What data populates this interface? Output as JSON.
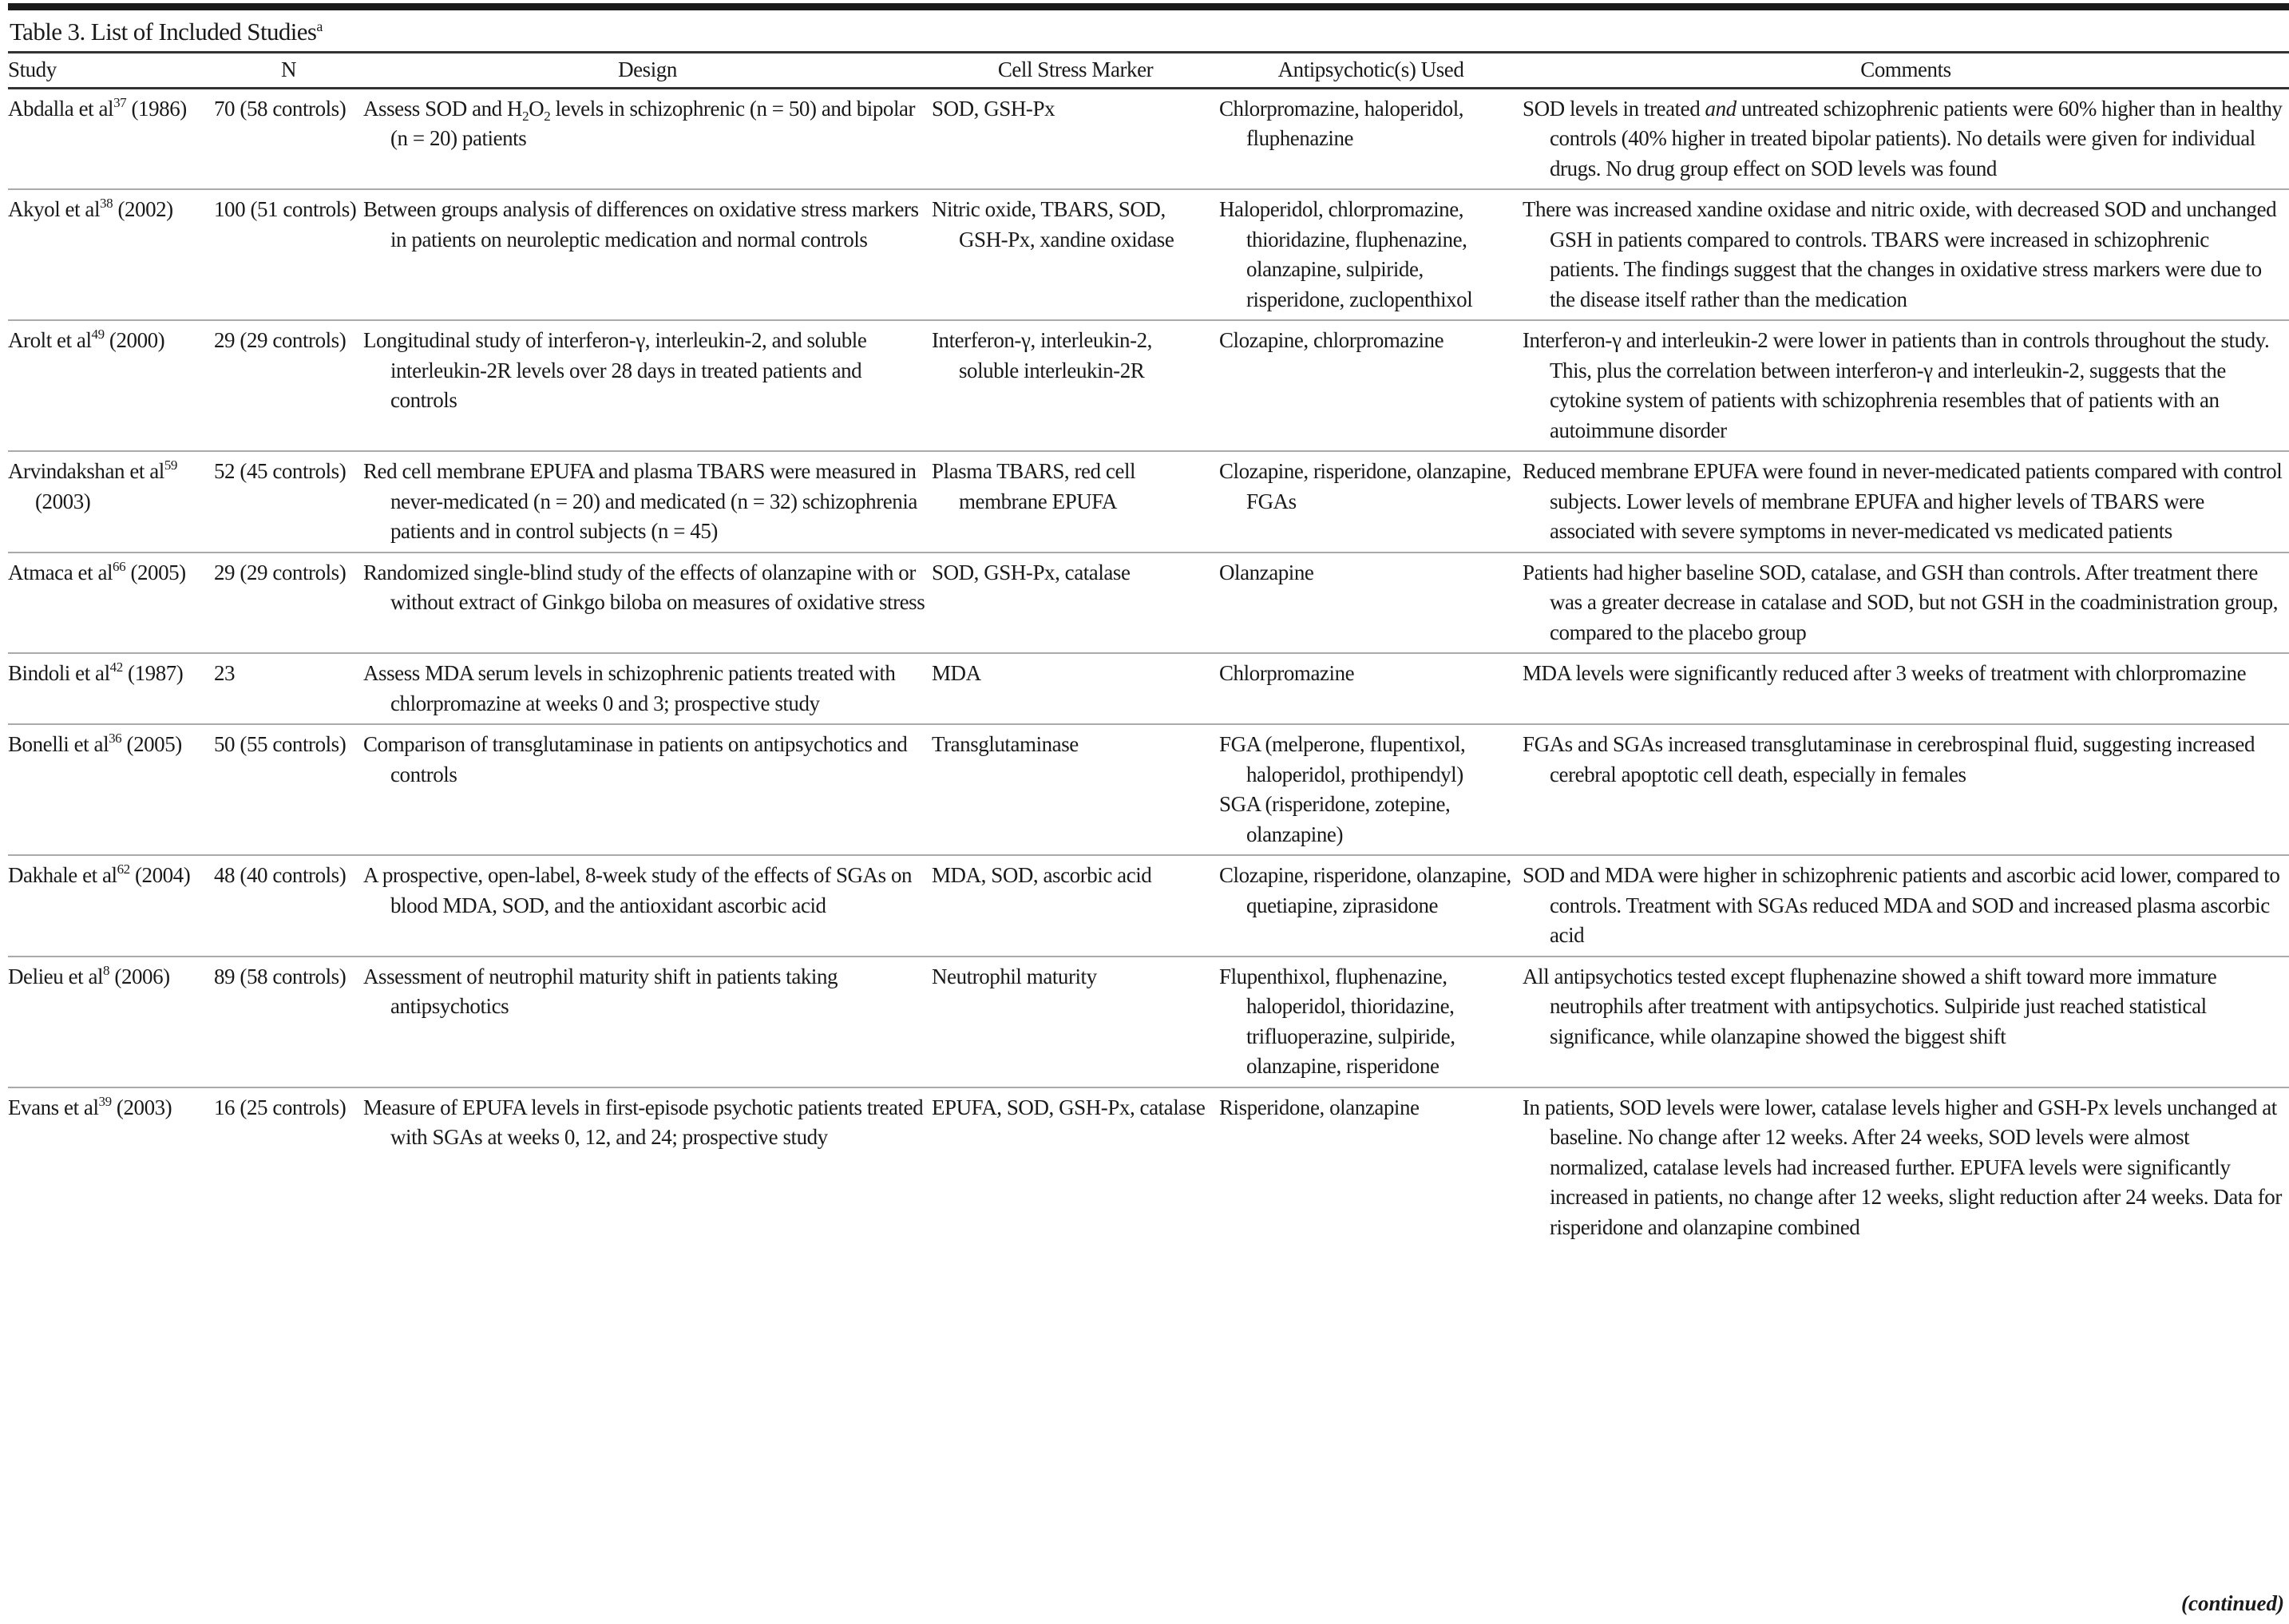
{
  "table": {
    "title": "Table 3. List of Included Studies",
    "title_sup": "a",
    "headers": [
      "Study",
      "N",
      "Design",
      "Cell Stress Marker",
      "Antipsychotic(s) Used",
      "Comments"
    ],
    "rows": [
      {
        "study": [
          {
            "t": "Abdalla et al"
          },
          {
            "sup": "37"
          },
          {
            "t": " (1986)"
          }
        ],
        "n": [
          {
            "t": "70 (58 controls)"
          }
        ],
        "design": [
          {
            "t": "Assess SOD and H"
          },
          {
            "sub": "2"
          },
          {
            "t": "O"
          },
          {
            "sub": "2"
          },
          {
            "t": " levels in schizophrenic (n = 50) and bipolar (n = 20) patients"
          }
        ],
        "marker": [
          {
            "t": "SOD, GSH-Px"
          }
        ],
        "drugs": [
          {
            "t": "Chlorpromazine, haloperidol, fluphenazine"
          }
        ],
        "comments": [
          {
            "t": "SOD levels in treated "
          },
          {
            "i": "and"
          },
          {
            "t": " untreated schizophrenic patients were 60% higher than in healthy controls (40% higher in treated bipolar patients). No details were given for individual drugs. No drug group effect on SOD levels was found"
          }
        ]
      },
      {
        "study": [
          {
            "t": "Akyol et al"
          },
          {
            "sup": "38"
          },
          {
            "t": " (2002)"
          }
        ],
        "n": [
          {
            "t": "100 (51 controls)"
          }
        ],
        "design": [
          {
            "t": "Between groups analysis of differences on oxidative stress markers in patients on neuroleptic medication and normal controls"
          }
        ],
        "marker": [
          {
            "t": "Nitric oxide, TBARS, SOD, GSH-Px, xandine oxidase"
          }
        ],
        "drugs": [
          {
            "t": "Haloperidol, chlorpromazine, thioridazine, fluphenazine, olanzapine, sulpiride, risperidone, zuclopenthixol"
          }
        ],
        "comments": [
          {
            "t": "There was increased xandine oxidase and nitric oxide, with decreased SOD and unchanged GSH in patients compared to controls. TBARS were increased in schizophrenic patients. The findings suggest that the changes in oxidative stress markers were due to the disease itself rather than the medication"
          }
        ]
      },
      {
        "study": [
          {
            "t": "Arolt et al"
          },
          {
            "sup": "49"
          },
          {
            "t": " (2000)"
          }
        ],
        "n": [
          {
            "t": "29 (29 controls)"
          }
        ],
        "design": [
          {
            "t": "Longitudinal study of interferon-γ, interleukin-2, and soluble interleukin-2R levels over 28 days in treated patients and controls"
          }
        ],
        "marker": [
          {
            "t": "Interferon-γ, interleukin-2, soluble interleukin-2R"
          }
        ],
        "drugs": [
          {
            "t": "Clozapine, chlorpromazine"
          }
        ],
        "comments": [
          {
            "t": "Interferon-γ and interleukin-2 were lower in patients than in controls throughout the study. This, plus the correlation between interferon-γ and interleukin-2, suggests that the cytokine system of patients with schizophrenia resembles that of patients with an autoimmune disorder"
          }
        ]
      },
      {
        "study": [
          {
            "t": "Arvindakshan et al"
          },
          {
            "sup": "59"
          },
          {
            "t": " (2003)"
          }
        ],
        "n": [
          {
            "t": "52 (45 controls)"
          }
        ],
        "design": [
          {
            "t": "Red cell membrane EPUFA and plasma TBARS were measured in never-medicated (n = 20) and medicated (n = 32) schizophrenia patients and in control subjects (n = 45)"
          }
        ],
        "marker": [
          {
            "t": "Plasma TBARS, red cell membrane EPUFA"
          }
        ],
        "drugs": [
          {
            "t": "Clozapine, risperidone, olanzapine, FGAs"
          }
        ],
        "comments": [
          {
            "t": "Reduced membrane EPUFA were found in never-medicated patients compared with control subjects. Lower levels of membrane EPUFA and higher levels of TBARS were associated with severe symptoms in never-medicated vs medicated patients"
          }
        ]
      },
      {
        "study": [
          {
            "t": "Atmaca et al"
          },
          {
            "sup": "66"
          },
          {
            "t": " (2005)"
          }
        ],
        "n": [
          {
            "t": "29 (29 controls)"
          }
        ],
        "design": [
          {
            "t": "Randomized single-blind study of the effects of olanzapine with or without extract of Ginkgo biloba on measures of oxidative stress"
          }
        ],
        "marker": [
          {
            "t": "SOD, GSH-Px, catalase"
          }
        ],
        "drugs": [
          {
            "t": "Olanzapine"
          }
        ],
        "comments": [
          {
            "t": "Patients had higher baseline SOD, catalase, and GSH than controls. After treatment there was a greater decrease in catalase and SOD, but not GSH in the coadministration group, compared to the placebo group"
          }
        ]
      },
      {
        "study": [
          {
            "t": "Bindoli et al"
          },
          {
            "sup": "42"
          },
          {
            "t": " (1987)"
          }
        ],
        "n": [
          {
            "t": "23"
          }
        ],
        "design": [
          {
            "t": "Assess MDA serum levels in schizophrenic patients treated with chlorpromazine at weeks 0 and 3; prospective study"
          }
        ],
        "marker": [
          {
            "t": "MDA"
          }
        ],
        "drugs": [
          {
            "t": "Chlorpromazine"
          }
        ],
        "comments": [
          {
            "t": "MDA levels were significantly reduced after 3 weeks of treatment with chlorpromazine"
          }
        ]
      },
      {
        "study": [
          {
            "t": "Bonelli et al"
          },
          {
            "sup": "36"
          },
          {
            "t": " (2005)"
          }
        ],
        "n": [
          {
            "t": "50 (55 controls)"
          }
        ],
        "design": [
          {
            "t": "Comparison of transglutaminase in patients on antipsychotics and controls"
          }
        ],
        "marker": [
          {
            "t": "Transglutaminase"
          }
        ],
        "drugs": [
          {
            "t": "FGA (melperone, flupentixol, haloperidol, prothipendyl)"
          },
          {
            "br": true
          },
          {
            "t": "SGA (risperidone, zotepine, olanzapine)"
          }
        ],
        "comments": [
          {
            "t": "FGAs and SGAs increased transglutaminase in cerebrospinal fluid, suggesting increased cerebral apoptotic cell death, especially in females"
          }
        ]
      },
      {
        "study": [
          {
            "t": "Dakhale et al"
          },
          {
            "sup": "62"
          },
          {
            "t": " (2004)"
          }
        ],
        "n": [
          {
            "t": "48 (40 controls)"
          }
        ],
        "design": [
          {
            "t": "A prospective, open-label, 8-week study of the effects of SGAs on blood MDA, SOD, and the antioxidant ascorbic acid"
          }
        ],
        "marker": [
          {
            "t": "MDA, SOD, ascorbic acid"
          }
        ],
        "drugs": [
          {
            "t": "Clozapine, risperidone, olanzapine, quetiapine, ziprasidone"
          }
        ],
        "comments": [
          {
            "t": "SOD and MDA were higher in schizophrenic patients and ascorbic acid lower, compared to controls. Treatment with SGAs reduced MDA and SOD and increased plasma ascorbic acid"
          }
        ]
      },
      {
        "study": [
          {
            "t": "Delieu et al"
          },
          {
            "sup": "8"
          },
          {
            "t": " (2006)"
          }
        ],
        "n": [
          {
            "t": "89 (58 controls)"
          }
        ],
        "design": [
          {
            "t": "Assessment of neutrophil maturity shift in patients taking antipsychotics"
          }
        ],
        "marker": [
          {
            "t": "Neutrophil maturity"
          }
        ],
        "drugs": [
          {
            "t": "Flupenthixol, fluphenazine, haloperidol, thioridazine, trifluoperazine, sulpiride, olanzapine, risperidone"
          }
        ],
        "comments": [
          {
            "t": "All antipsychotics tested except fluphenazine showed a shift toward more immature neutrophils after treatment with antipsychotics. Sulpiride just reached statistical significance, while olanzapine showed the biggest shift"
          }
        ]
      },
      {
        "study": [
          {
            "t": "Evans et al"
          },
          {
            "sup": "39"
          },
          {
            "t": " (2003)"
          }
        ],
        "n": [
          {
            "t": "16 (25 controls)"
          }
        ],
        "design": [
          {
            "t": "Measure of EPUFA levels in first-episode psychotic patients treated with SGAs at weeks 0, 12, and 24; prospective study"
          }
        ],
        "marker": [
          {
            "t": "EPUFA, SOD, GSH-Px, catalase"
          }
        ],
        "drugs": [
          {
            "t": "Risperidone, olanzapine"
          }
        ],
        "comments": [
          {
            "t": "In patients, SOD levels were lower, catalase levels higher and GSH-Px levels unchanged at baseline. No change after 12 weeks. After 24 weeks, SOD levels were almost normalized, catalase levels had increased further. EPUFA levels were significantly increased in patients, no change after 12 weeks, slight reduction after 24 weeks. Data for risperidone and olanzapine combined"
          }
        ]
      }
    ],
    "continued": "(continued)"
  }
}
